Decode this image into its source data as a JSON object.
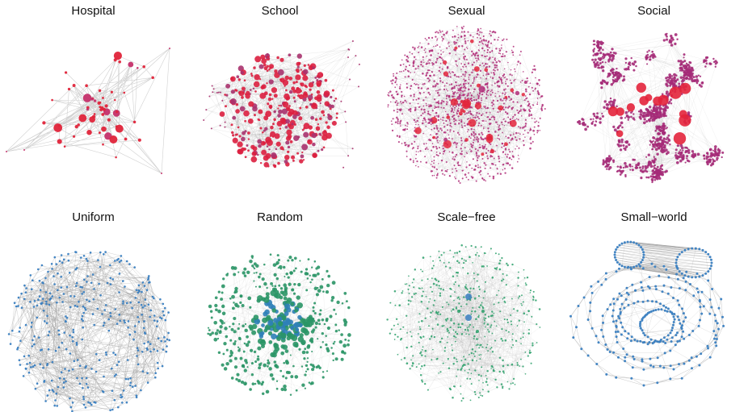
{
  "figure": {
    "panels": [
      {
        "title": "Hospital",
        "style": "hospital",
        "node_color": "#e0243a",
        "alt_color": "#c5306a"
      },
      {
        "title": "School",
        "style": "school",
        "node_color": "#dc1f3f",
        "alt_color": "#a8326e"
      },
      {
        "title": "Sexual",
        "style": "sexual",
        "node_color": "#b02c78",
        "alt_color": "#e3243b"
      },
      {
        "title": "Social",
        "style": "social",
        "node_color": "#a52b78",
        "alt_color": "#e3243b"
      },
      {
        "title": "Uniform",
        "style": "uniform",
        "node_color": "#3a7fc1",
        "alt_color": "#2f6fb0"
      },
      {
        "title": "Random",
        "style": "random",
        "node_color": "#2a9566",
        "alt_color": "#2f80b8"
      },
      {
        "title": "Scale−free",
        "style": "scalefree",
        "node_color": "#2aa06a",
        "alt_color": "#3a7fc1"
      },
      {
        "title": "Small−world",
        "style": "smallworld",
        "node_color": "#3a7fc1",
        "alt_color": "#2f6fb0"
      }
    ],
    "edge_color": "#9a9a9a"
  }
}
